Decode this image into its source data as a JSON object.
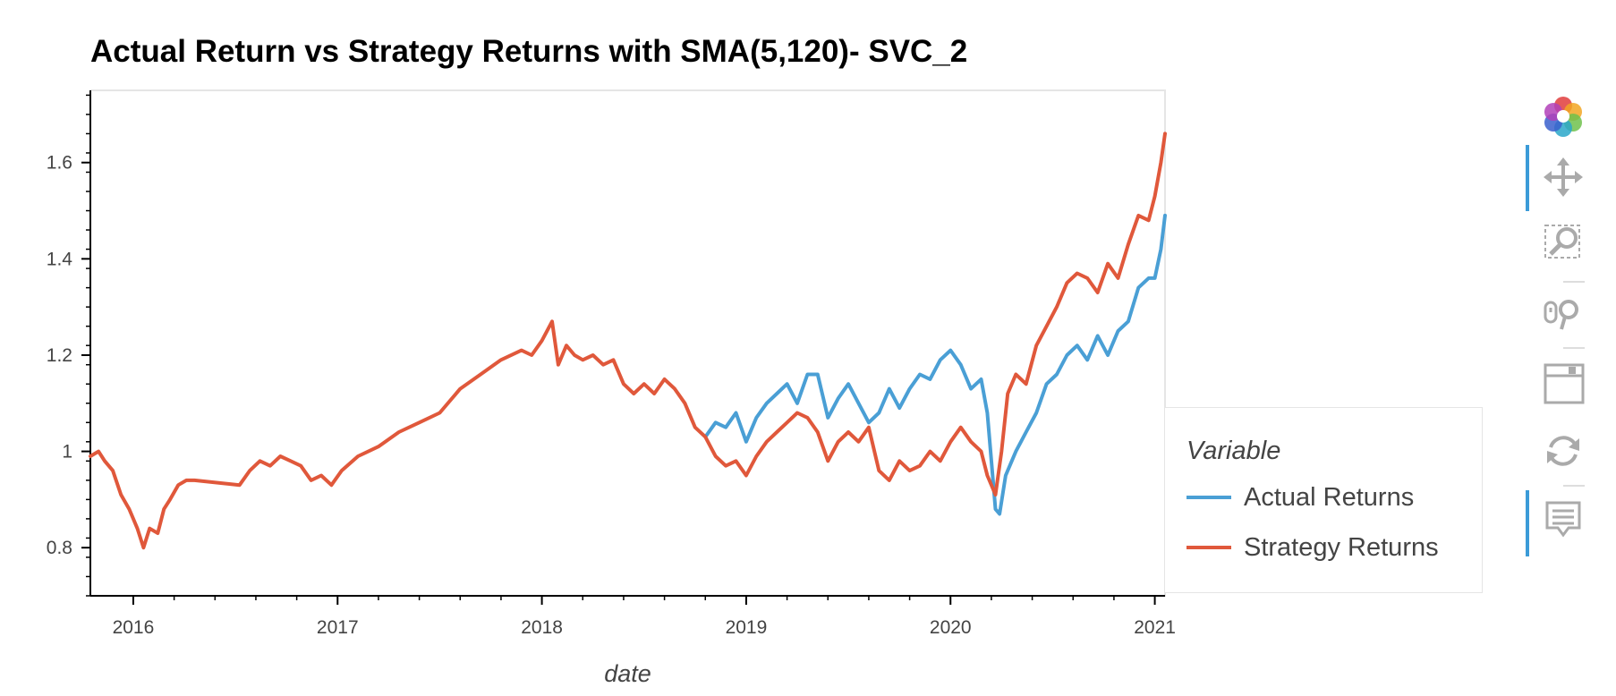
{
  "chart_data": {
    "type": "line",
    "title": "Actual Return vs Strategy Returns with SMA(5,120)- SVC_2",
    "xlabel": "date",
    "ylabel": "",
    "xlim": [
      2015.79,
      2021.05
    ],
    "ylim": [
      0.7,
      1.75
    ],
    "x_ticks": [
      2016,
      2017,
      2018,
      2019,
      2020,
      2021
    ],
    "x_tick_labels": [
      "2016",
      "2017",
      "2018",
      "2019",
      "2020",
      "2021"
    ],
    "y_ticks": [
      0.8,
      1.0,
      1.2,
      1.4,
      1.6
    ],
    "y_tick_labels": [
      "0.8",
      "1",
      "1.2",
      "1.4",
      "1.6"
    ],
    "legend": {
      "title": "Variable",
      "placement": "right"
    },
    "series": [
      {
        "name": "Actual Returns",
        "color": "#4a9fd5",
        "x": [
          2018.8,
          2018.85,
          2018.9,
          2018.95,
          2019.0,
          2019.05,
          2019.1,
          2019.15,
          2019.2,
          2019.25,
          2019.3,
          2019.35,
          2019.4,
          2019.45,
          2019.5,
          2019.55,
          2019.6,
          2019.65,
          2019.7,
          2019.75,
          2019.8,
          2019.85,
          2019.9,
          2019.95,
          2020.0,
          2020.05,
          2020.1,
          2020.15,
          2020.18,
          2020.22,
          2020.24,
          2020.27,
          2020.32,
          2020.37,
          2020.42,
          2020.47,
          2020.52,
          2020.57,
          2020.62,
          2020.67,
          2020.72,
          2020.77,
          2020.82,
          2020.87,
          2020.92,
          2020.97,
          2021.0,
          2021.03,
          2021.05
        ],
        "values": [
          1.03,
          1.06,
          1.05,
          1.08,
          1.02,
          1.07,
          1.1,
          1.12,
          1.14,
          1.1,
          1.16,
          1.16,
          1.07,
          1.11,
          1.14,
          1.1,
          1.06,
          1.08,
          1.13,
          1.09,
          1.13,
          1.16,
          1.15,
          1.19,
          1.21,
          1.18,
          1.13,
          1.15,
          1.08,
          0.88,
          0.87,
          0.95,
          1.0,
          1.04,
          1.08,
          1.14,
          1.16,
          1.2,
          1.22,
          1.19,
          1.24,
          1.2,
          1.25,
          1.27,
          1.34,
          1.36,
          1.36,
          1.42,
          1.49
        ]
      },
      {
        "name": "Strategy Returns",
        "color": "#e0583b",
        "x": [
          2015.79,
          2015.83,
          2015.86,
          2015.9,
          2015.94,
          2015.98,
          2016.02,
          2016.05,
          2016.08,
          2016.12,
          2016.15,
          2016.18,
          2016.22,
          2016.26,
          2016.3,
          2016.52,
          2016.57,
          2016.62,
          2016.67,
          2016.72,
          2016.77,
          2016.82,
          2016.87,
          2016.92,
          2016.97,
          2017.02,
          2017.1,
          2017.2,
          2017.3,
          2017.4,
          2017.5,
          2017.6,
          2017.7,
          2017.8,
          2017.9,
          2017.95,
          2018.0,
          2018.05,
          2018.08,
          2018.12,
          2018.16,
          2018.2,
          2018.25,
          2018.3,
          2018.35,
          2018.4,
          2018.45,
          2018.5,
          2018.55,
          2018.6,
          2018.65,
          2018.7,
          2018.75,
          2018.8,
          2018.85,
          2018.9,
          2018.95,
          2019.0,
          2019.05,
          2019.1,
          2019.15,
          2019.2,
          2019.25,
          2019.3,
          2019.35,
          2019.4,
          2019.45,
          2019.5,
          2019.55,
          2019.6,
          2019.65,
          2019.7,
          2019.75,
          2019.8,
          2019.85,
          2019.9,
          2019.95,
          2020.0,
          2020.05,
          2020.1,
          2020.15,
          2020.18,
          2020.22,
          2020.25,
          2020.28,
          2020.32,
          2020.37,
          2020.42,
          2020.47,
          2020.52,
          2020.57,
          2020.62,
          2020.67,
          2020.72,
          2020.77,
          2020.82,
          2020.87,
          2020.92,
          2020.97,
          2021.0,
          2021.03,
          2021.05
        ],
        "values": [
          0.99,
          1.0,
          0.98,
          0.96,
          0.91,
          0.88,
          0.84,
          0.8,
          0.84,
          0.83,
          0.88,
          0.9,
          0.93,
          0.94,
          0.94,
          0.93,
          0.96,
          0.98,
          0.97,
          0.99,
          0.98,
          0.97,
          0.94,
          0.95,
          0.93,
          0.96,
          0.99,
          1.01,
          1.04,
          1.06,
          1.08,
          1.13,
          1.16,
          1.19,
          1.21,
          1.2,
          1.23,
          1.27,
          1.18,
          1.22,
          1.2,
          1.19,
          1.2,
          1.18,
          1.19,
          1.14,
          1.12,
          1.14,
          1.12,
          1.15,
          1.13,
          1.1,
          1.05,
          1.03,
          0.99,
          0.97,
          0.98,
          0.95,
          0.99,
          1.02,
          1.04,
          1.06,
          1.08,
          1.07,
          1.04,
          0.98,
          1.02,
          1.04,
          1.02,
          1.05,
          0.96,
          0.94,
          0.98,
          0.96,
          0.97,
          1.0,
          0.98,
          1.02,
          1.05,
          1.02,
          1.0,
          0.95,
          0.91,
          1.0,
          1.12,
          1.16,
          1.14,
          1.22,
          1.26,
          1.3,
          1.35,
          1.37,
          1.36,
          1.33,
          1.39,
          1.36,
          1.43,
          1.49,
          1.48,
          1.53,
          1.6,
          1.66
        ]
      }
    ]
  },
  "toolbar": {
    "tools": [
      {
        "name": "bokeh-logo-icon"
      },
      {
        "name": "pan-tool-icon",
        "active": true
      },
      {
        "name": "box-zoom-tool-icon"
      },
      {
        "name": "wheel-zoom-tool-icon"
      },
      {
        "name": "save-tool-icon"
      },
      {
        "name": "reset-tool-icon"
      },
      {
        "name": "hover-tool-icon",
        "active": true
      }
    ]
  }
}
